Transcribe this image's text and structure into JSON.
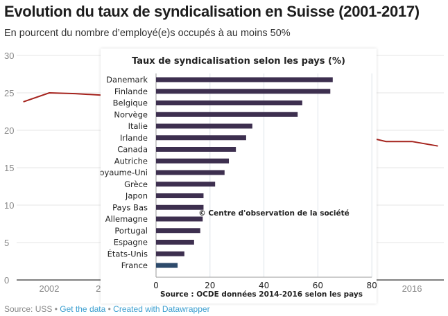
{
  "title": "Evolution du taux de syndicalisation en Suisse (2001-2017)",
  "subtitle": "En pourcent du nombre d’employé(e)s occupés à au moins 50%",
  "footer": {
    "source": "Source: USS",
    "sep1": " • ",
    "get_data": "Get the data",
    "sep2": " • ",
    "created": "Created with Datawrapper"
  },
  "colors": {
    "line": "#a5231d",
    "bar": "#3d2f4f",
    "bar_highlight": "#2d4a6b"
  },
  "chart_data": [
    {
      "type": "line",
      "title": "Evolution du taux de syndicalisation en Suisse (2001-2017)",
      "ylim": [
        0,
        30
      ],
      "yticks": [
        0,
        5,
        10,
        15,
        20,
        25,
        30
      ],
      "xticks_visible": [
        "2002",
        "2",
        "2016"
      ],
      "grid": true,
      "x": [
        2001,
        2002,
        2003,
        2004,
        2014,
        2015,
        2016,
        2017
      ],
      "values": [
        23.8,
        25.0,
        24.9,
        24.7,
        19.3,
        18.5,
        18.5,
        17.9
      ]
    },
    {
      "type": "bar",
      "orientation": "horizontal",
      "title": "Taux de syndicalisation selon les pays (%)",
      "categories": [
        "Danemark",
        "Finlande",
        "Belgique",
        "Norvège",
        "Italie",
        "Irlande",
        "Canada",
        "Autriche",
        "Royaume-Uni",
        "Grèce",
        "Japon",
        "Pays Bas",
        "Allemagne",
        "Portugal",
        "Espagne",
        "États-Unis",
        "France"
      ],
      "values": [
        65.5,
        64.6,
        54.2,
        52.5,
        35.7,
        33.4,
        29.6,
        27.0,
        25.4,
        21.9,
        17.6,
        17.6,
        17.3,
        16.4,
        14.1,
        10.5,
        8.0
      ],
      "highlight": "France",
      "xlim": [
        0,
        80
      ],
      "xticks": [
        0,
        20,
        40,
        60,
        80
      ],
      "grid": true,
      "annotation": "© Centre d'observation de la société",
      "source": "Source : OCDE données 2014-2016 selon les pays"
    }
  ]
}
